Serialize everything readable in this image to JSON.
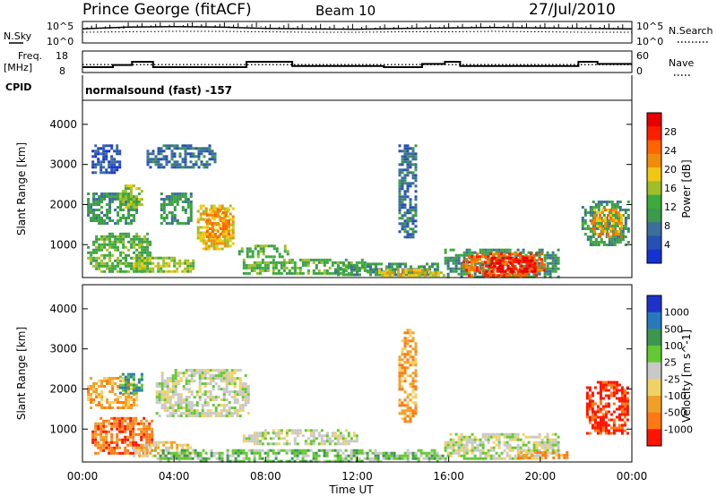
{
  "header": {
    "title": "Prince George (fitACF)",
    "beam": "Beam 10",
    "date": "27/Jul/2010"
  },
  "top_panels": {
    "nsky_label": "N.Sky",
    "nsearch_label": "N.Search",
    "noise_tick_top": "10^5",
    "noise_tick_bottom": "10^0",
    "freq_label": "Freq.",
    "freq_unit": "[MHz]",
    "freq_ticks": [
      "18",
      "8"
    ],
    "nave_label": "Nave",
    "nave_ticks": [
      "60",
      "0"
    ],
    "cpid_label": "CPID",
    "cpid_value": "normalsound (fast) -157"
  },
  "colors": {
    "power": [
      "#1432d2",
      "#2850b4",
      "#3c6e9a",
      "#3c9a4c",
      "#3caa3c",
      "#a0be28",
      "#f0c814",
      "#f08c0a",
      "#ff6400",
      "#ff1e00",
      "#e60000"
    ],
    "velocity": [
      "#1e32c8",
      "#2878be",
      "#3c9650",
      "#64c832",
      "#c8c8c8",
      "#f0d264",
      "#f0a028",
      "#ff7814",
      "#ff1400"
    ]
  },
  "chart_data": [
    {
      "type": "line",
      "name": "noise",
      "ylabel": "N.Sky",
      "ylim_labels": [
        "10^0",
        "10^5"
      ],
      "x": [
        "00:00",
        "02:00",
        "04:00",
        "06:00",
        "08:00",
        "10:00",
        "12:00",
        "14:00",
        "16:00",
        "18:00",
        "20:00",
        "22:00",
        "24:00"
      ],
      "series": [
        {
          "name": "N.Sky",
          "values": [
            3.3,
            3.7,
            3.8,
            3.7,
            3.4,
            3.3,
            3.2,
            3.4,
            3.5,
            3.6,
            3.5,
            3.4,
            3.3
          ]
        },
        {
          "name": "N.Search",
          "values": [
            2.5,
            2.6,
            2.7,
            2.7,
            2.6,
            2.5,
            2.5,
            2.6,
            2.6,
            2.7,
            2.6,
            2.5,
            2.5
          ]
        }
      ]
    },
    {
      "type": "line",
      "name": "frequency-nave",
      "ylabel": "Freq. [MHz]",
      "ylim": [
        8,
        18
      ],
      "steps": [
        {
          "start": "00:00",
          "end": "01:20",
          "freq": 10.5
        },
        {
          "start": "01:20",
          "end": "02:10",
          "freq": 11.5
        },
        {
          "start": "02:10",
          "end": "03:05",
          "freq": 13.0
        },
        {
          "start": "03:05",
          "end": "07:10",
          "freq": 10.5
        },
        {
          "start": "07:10",
          "end": "09:10",
          "freq": 13.0
        },
        {
          "start": "09:10",
          "end": "13:10",
          "freq": 11.0
        },
        {
          "start": "13:10",
          "end": "14:50",
          "freq": 10.5
        },
        {
          "start": "14:50",
          "end": "15:50",
          "freq": 12.0
        },
        {
          "start": "15:50",
          "end": "16:30",
          "freq": 13.0
        },
        {
          "start": "16:30",
          "end": "21:40",
          "freq": 11.0
        },
        {
          "start": "21:40",
          "end": "22:30",
          "freq": 13.0
        },
        {
          "start": "22:30",
          "end": "24:00",
          "freq": 12.0
        }
      ],
      "nave_ylim": [
        0,
        60
      ],
      "nave_level": 22
    },
    {
      "type": "heatmap",
      "name": "power",
      "xlabel": "",
      "ylabel": "Slant Range [km]",
      "xlim": [
        0,
        24
      ],
      "ylim": [
        180,
        4600
      ],
      "yticks": [
        1000,
        2000,
        3000,
        4000
      ],
      "colorbar_label": "Power [dB]",
      "colorbar_ticks": [
        "4",
        "8",
        "12",
        "16",
        "20",
        "24",
        "28"
      ],
      "blobs": [
        {
          "t0": 0.2,
          "t1": 2.4,
          "r0": 1500,
          "r1": 2300,
          "level": 3
        },
        {
          "t0": 1.6,
          "t1": 2.6,
          "r0": 1900,
          "r1": 2500,
          "level": 5
        },
        {
          "t0": 0.2,
          "t1": 3.0,
          "r0": 300,
          "r1": 1300,
          "level": 4
        },
        {
          "t0": 2.2,
          "t1": 4.8,
          "r0": 300,
          "r1": 700,
          "level": 5
        },
        {
          "t0": 5.0,
          "t1": 6.6,
          "r0": 900,
          "r1": 2000,
          "level": 6
        },
        {
          "t0": 5.4,
          "t1": 6.4,
          "r0": 1200,
          "r1": 1900,
          "level": 7
        },
        {
          "t0": 3.4,
          "t1": 4.8,
          "r0": 1500,
          "r1": 2300,
          "level": 3
        },
        {
          "t0": 6.8,
          "t1": 9.0,
          "r0": 700,
          "r1": 1000,
          "level": 4
        },
        {
          "t0": 7.0,
          "t1": 12.5,
          "r0": 300,
          "r1": 650,
          "level": 4
        },
        {
          "t0": 11.0,
          "t1": 15.5,
          "r0": 220,
          "r1": 550,
          "level": 3
        },
        {
          "t0": 12.8,
          "t1": 15.8,
          "r0": 250,
          "r1": 400,
          "level": 6
        },
        {
          "t0": 15.8,
          "t1": 20.8,
          "r0": 200,
          "r1": 900,
          "level": 3
        },
        {
          "t0": 16.6,
          "t1": 20.2,
          "r0": 250,
          "r1": 800,
          "level": 8
        },
        {
          "t0": 17.6,
          "t1": 19.8,
          "r0": 300,
          "r1": 700,
          "level": 10
        },
        {
          "t0": 13.8,
          "t1": 14.6,
          "r0": 1200,
          "r1": 3500,
          "level": 2
        },
        {
          "t0": 21.8,
          "t1": 23.8,
          "r0": 1000,
          "r1": 2100,
          "level": 3
        },
        {
          "t0": 22.2,
          "t1": 23.6,
          "r0": 1200,
          "r1": 1900,
          "level": 7
        },
        {
          "t0": 0.4,
          "t1": 1.6,
          "r0": 2800,
          "r1": 3500,
          "level": 1
        },
        {
          "t0": 2.8,
          "t1": 5.8,
          "r0": 2900,
          "r1": 3500,
          "level": 2
        }
      ]
    },
    {
      "type": "heatmap",
      "name": "velocity",
      "xlabel": "Time UT",
      "ylabel": "Slant Range [km]",
      "xlim": [
        0,
        24
      ],
      "ylim": [
        180,
        4600
      ],
      "xticks": [
        "00:00",
        "04:00",
        "08:00",
        "12:00",
        "16:00",
        "20:00",
        "00:00"
      ],
      "yticks": [
        1000,
        2000,
        3000,
        4000
      ],
      "colorbar_label": "Velocity [m s^-1]",
      "colorbar_ticks": [
        "1000",
        "500",
        "100",
        "25",
        "-25",
        "-100",
        "-500",
        "-1000"
      ],
      "blobs": [
        {
          "t0": 0.2,
          "t1": 2.4,
          "r0": 1500,
          "r1": 2300,
          "level": 6
        },
        {
          "t0": 1.6,
          "t1": 2.6,
          "r0": 1900,
          "r1": 2400,
          "level": 2
        },
        {
          "t0": 0.4,
          "t1": 3.0,
          "r0": 400,
          "r1": 1300,
          "level": 7
        },
        {
          "t0": 2.2,
          "t1": 4.8,
          "r0": 300,
          "r1": 700,
          "level": 5
        },
        {
          "t0": 3.2,
          "t1": 7.2,
          "r0": 1300,
          "r1": 2500,
          "level": 4
        },
        {
          "t0": 7.0,
          "t1": 12.0,
          "r0": 600,
          "r1": 1000,
          "level": 4
        },
        {
          "t0": 3.0,
          "t1": 16.0,
          "r0": 220,
          "r1": 500,
          "level": 3
        },
        {
          "t0": 15.8,
          "t1": 20.8,
          "r0": 250,
          "r1": 900,
          "level": 4
        },
        {
          "t0": 13.8,
          "t1": 14.6,
          "r0": 1200,
          "r1": 3500,
          "level": 6
        },
        {
          "t0": 22.0,
          "t1": 23.8,
          "r0": 900,
          "r1": 2200,
          "level": 8
        },
        {
          "t0": 19.0,
          "t1": 21.2,
          "r0": 250,
          "r1": 450,
          "level": 6
        }
      ]
    }
  ]
}
